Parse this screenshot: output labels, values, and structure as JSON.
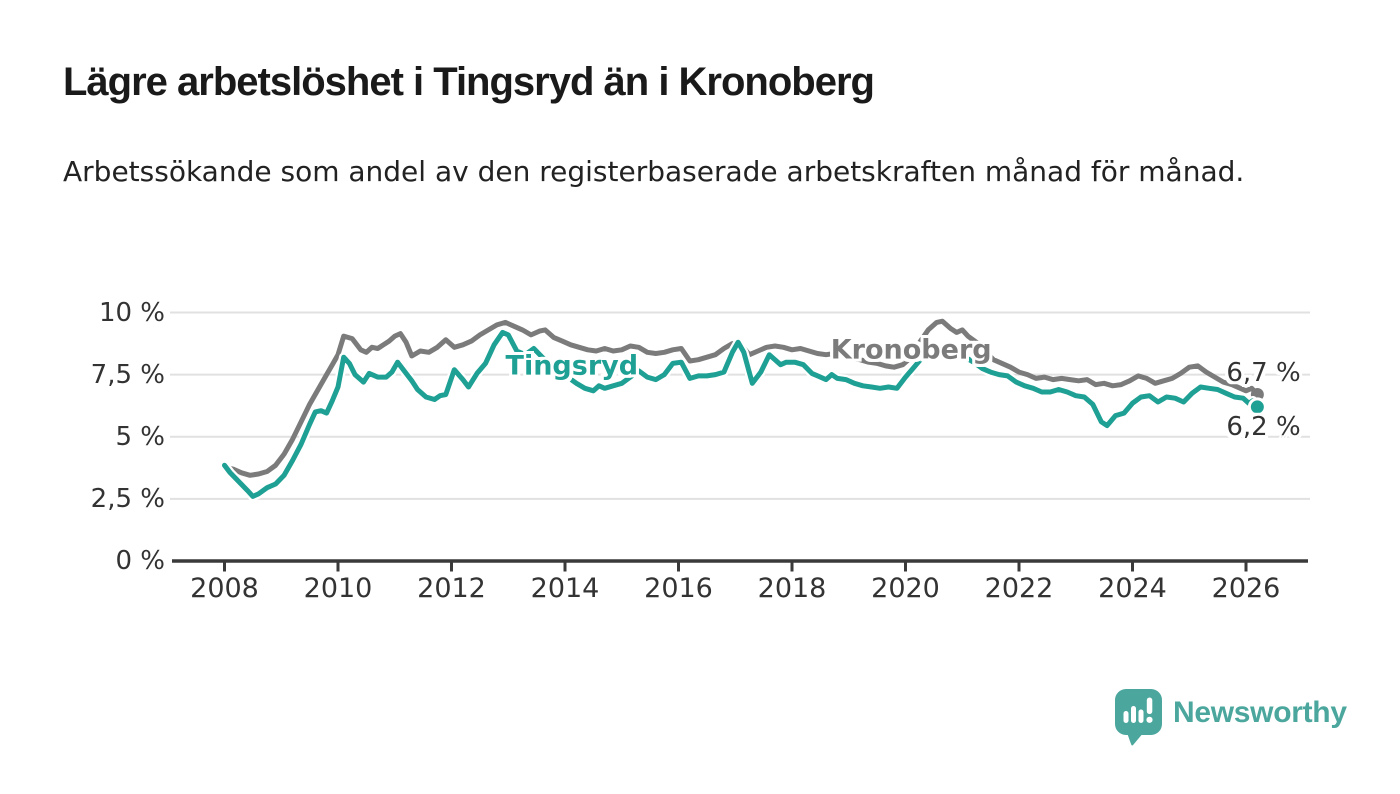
{
  "header": {
    "title": "Lägre arbetslöshet i Tingsryd än i Kronoberg",
    "subtitle": "Arbetssökande som andel av den registerbaserade arbetskraften månad för månad."
  },
  "branding": {
    "logo_text": "Newsworthy",
    "logo_icon": "speech-bubble-bar-chart-icon",
    "color": "#4BA79D"
  },
  "colors": {
    "accent_teal": "#1EA094",
    "series_gray": "#7B7B7B",
    "grid": "#E1E1E1",
    "axis": "#3A3A3A",
    "text": "#333333",
    "title": "#1A1A1A"
  },
  "chart_data": {
    "type": "line",
    "unit": "%",
    "grid": "horizontal",
    "legend": "inline labels on lines + end value labels",
    "x_axis": {
      "tick_labels": [
        "2008",
        "2010",
        "2012",
        "2014",
        "2016",
        "2018",
        "2020",
        "2022",
        "2024",
        "2026"
      ],
      "tick_values": [
        2008,
        2010,
        2012,
        2014,
        2016,
        2018,
        2020,
        2022,
        2024,
        2026
      ],
      "range": [
        2008,
        2026.2
      ]
    },
    "y_axis": {
      "tick_labels": [
        "0 %",
        "2,5 %",
        "5 %",
        "7,5 %",
        "10 %"
      ],
      "tick_values": [
        0,
        2.5,
        5,
        7.5,
        10
      ],
      "range": [
        0,
        10.2
      ]
    },
    "series": [
      {
        "name": "Kronoberg",
        "color": "#7B7B7B",
        "end_label": "6,7 %",
        "end_value": 6.7,
        "inline_label_anchor": {
          "x": 2020.1,
          "y": 8.5
        },
        "end_label_anchor_y": 7.55,
        "points": [
          [
            2008.0,
            3.8
          ],
          [
            2008.15,
            3.7
          ],
          [
            2008.3,
            3.55
          ],
          [
            2008.45,
            3.45
          ],
          [
            2008.6,
            3.5
          ],
          [
            2008.75,
            3.6
          ],
          [
            2008.9,
            3.85
          ],
          [
            2009.05,
            4.3
          ],
          [
            2009.2,
            4.9
          ],
          [
            2009.35,
            5.6
          ],
          [
            2009.5,
            6.3
          ],
          [
            2009.65,
            6.9
          ],
          [
            2009.8,
            7.5
          ],
          [
            2009.9,
            7.9
          ],
          [
            2010.0,
            8.3
          ],
          [
            2010.1,
            9.05
          ],
          [
            2010.25,
            8.95
          ],
          [
            2010.4,
            8.5
          ],
          [
            2010.5,
            8.4
          ],
          [
            2010.6,
            8.6
          ],
          [
            2010.7,
            8.55
          ],
          [
            2010.8,
            8.7
          ],
          [
            2010.9,
            8.85
          ],
          [
            2011.0,
            9.05
          ],
          [
            2011.1,
            9.15
          ],
          [
            2011.2,
            8.8
          ],
          [
            2011.3,
            8.25
          ],
          [
            2011.45,
            8.45
          ],
          [
            2011.6,
            8.4
          ],
          [
            2011.75,
            8.6
          ],
          [
            2011.9,
            8.9
          ],
          [
            2012.05,
            8.6
          ],
          [
            2012.2,
            8.7
          ],
          [
            2012.35,
            8.85
          ],
          [
            2012.5,
            9.1
          ],
          [
            2012.65,
            9.3
          ],
          [
            2012.8,
            9.5
          ],
          [
            2012.95,
            9.6
          ],
          [
            2013.1,
            9.45
          ],
          [
            2013.25,
            9.3
          ],
          [
            2013.4,
            9.1
          ],
          [
            2013.55,
            9.25
          ],
          [
            2013.65,
            9.3
          ],
          [
            2013.8,
            9.0
          ],
          [
            2013.95,
            8.85
          ],
          [
            2014.1,
            8.7
          ],
          [
            2014.25,
            8.6
          ],
          [
            2014.4,
            8.5
          ],
          [
            2014.55,
            8.45
          ],
          [
            2014.7,
            8.55
          ],
          [
            2014.85,
            8.45
          ],
          [
            2015.0,
            8.5
          ],
          [
            2015.15,
            8.65
          ],
          [
            2015.3,
            8.6
          ],
          [
            2015.45,
            8.4
          ],
          [
            2015.6,
            8.35
          ],
          [
            2015.75,
            8.4
          ],
          [
            2015.9,
            8.5
          ],
          [
            2016.05,
            8.55
          ],
          [
            2016.2,
            8.05
          ],
          [
            2016.35,
            8.1
          ],
          [
            2016.5,
            8.2
          ],
          [
            2016.65,
            8.3
          ],
          [
            2016.8,
            8.55
          ],
          [
            2016.95,
            8.75
          ],
          [
            2017.1,
            8.7
          ],
          [
            2017.25,
            8.3
          ],
          [
            2017.4,
            8.45
          ],
          [
            2017.55,
            8.6
          ],
          [
            2017.7,
            8.65
          ],
          [
            2017.85,
            8.6
          ],
          [
            2018.0,
            8.5
          ],
          [
            2018.15,
            8.55
          ],
          [
            2018.3,
            8.45
          ],
          [
            2018.45,
            8.35
          ],
          [
            2018.6,
            8.3
          ],
          [
            2018.75,
            8.35
          ],
          [
            2018.9,
            8.2
          ],
          [
            2019.05,
            8.15
          ],
          [
            2019.2,
            8.1
          ],
          [
            2019.35,
            8.0
          ],
          [
            2019.5,
            7.95
          ],
          [
            2019.65,
            7.85
          ],
          [
            2019.8,
            7.8
          ],
          [
            2019.95,
            7.9
          ],
          [
            2020.1,
            8.2
          ],
          [
            2020.25,
            8.8
          ],
          [
            2020.4,
            9.3
          ],
          [
            2020.55,
            9.6
          ],
          [
            2020.65,
            9.65
          ],
          [
            2020.8,
            9.35
          ],
          [
            2020.9,
            9.2
          ],
          [
            2021.0,
            9.3
          ],
          [
            2021.1,
            9.05
          ],
          [
            2021.25,
            8.8
          ],
          [
            2021.4,
            8.45
          ],
          [
            2021.55,
            8.1
          ],
          [
            2021.7,
            7.95
          ],
          [
            2021.85,
            7.8
          ],
          [
            2022.0,
            7.6
          ],
          [
            2022.15,
            7.5
          ],
          [
            2022.3,
            7.35
          ],
          [
            2022.45,
            7.4
          ],
          [
            2022.6,
            7.3
          ],
          [
            2022.75,
            7.35
          ],
          [
            2022.9,
            7.3
          ],
          [
            2023.05,
            7.25
          ],
          [
            2023.2,
            7.3
          ],
          [
            2023.35,
            7.1
          ],
          [
            2023.5,
            7.15
          ],
          [
            2023.65,
            7.05
          ],
          [
            2023.8,
            7.1
          ],
          [
            2023.95,
            7.25
          ],
          [
            2024.1,
            7.45
          ],
          [
            2024.25,
            7.35
          ],
          [
            2024.4,
            7.15
          ],
          [
            2024.55,
            7.25
          ],
          [
            2024.7,
            7.35
          ],
          [
            2024.85,
            7.55
          ],
          [
            2025.0,
            7.8
          ],
          [
            2025.15,
            7.85
          ],
          [
            2025.3,
            7.6
          ],
          [
            2025.45,
            7.4
          ],
          [
            2025.6,
            7.2
          ],
          [
            2025.75,
            7.1
          ],
          [
            2025.9,
            6.95
          ],
          [
            2026.0,
            6.85
          ],
          [
            2026.1,
            6.95
          ],
          [
            2026.2,
            6.7
          ]
        ]
      },
      {
        "name": "Tingsryd",
        "color": "#1EA094",
        "end_label": "6,2 %",
        "end_value": 6.2,
        "inline_label_anchor": {
          "x": 2014.12,
          "y": 7.85
        },
        "end_label_anchor_y": 5.4,
        "points": [
          [
            2008.0,
            3.85
          ],
          [
            2008.1,
            3.55
          ],
          [
            2008.25,
            3.2
          ],
          [
            2008.4,
            2.85
          ],
          [
            2008.5,
            2.6
          ],
          [
            2008.6,
            2.7
          ],
          [
            2008.75,
            2.95
          ],
          [
            2008.9,
            3.1
          ],
          [
            2009.05,
            3.45
          ],
          [
            2009.2,
            4.05
          ],
          [
            2009.35,
            4.7
          ],
          [
            2009.5,
            5.5
          ],
          [
            2009.6,
            6.0
          ],
          [
            2009.7,
            6.05
          ],
          [
            2009.8,
            5.95
          ],
          [
            2009.9,
            6.45
          ],
          [
            2010.0,
            7.0
          ],
          [
            2010.1,
            8.2
          ],
          [
            2010.2,
            7.95
          ],
          [
            2010.3,
            7.5
          ],
          [
            2010.45,
            7.2
          ],
          [
            2010.55,
            7.55
          ],
          [
            2010.7,
            7.4
          ],
          [
            2010.85,
            7.4
          ],
          [
            2010.95,
            7.6
          ],
          [
            2011.05,
            8.0
          ],
          [
            2011.2,
            7.55
          ],
          [
            2011.3,
            7.25
          ],
          [
            2011.4,
            6.9
          ],
          [
            2011.55,
            6.6
          ],
          [
            2011.7,
            6.5
          ],
          [
            2011.8,
            6.65
          ],
          [
            2011.9,
            6.7
          ],
          [
            2012.05,
            7.7
          ],
          [
            2012.2,
            7.3
          ],
          [
            2012.3,
            7.0
          ],
          [
            2012.45,
            7.55
          ],
          [
            2012.6,
            7.95
          ],
          [
            2012.75,
            8.7
          ],
          [
            2012.9,
            9.2
          ],
          [
            2013.0,
            9.1
          ],
          [
            2013.15,
            8.45
          ],
          [
            2013.3,
            8.3
          ],
          [
            2013.45,
            8.55
          ],
          [
            2013.6,
            8.2
          ],
          [
            2013.75,
            7.9
          ],
          [
            2013.9,
            7.65
          ],
          [
            2014.05,
            7.4
          ],
          [
            2014.2,
            7.15
          ],
          [
            2014.35,
            6.95
          ],
          [
            2014.5,
            6.85
          ],
          [
            2014.6,
            7.05
          ],
          [
            2014.7,
            6.95
          ],
          [
            2014.85,
            7.05
          ],
          [
            2015.0,
            7.15
          ],
          [
            2015.15,
            7.4
          ],
          [
            2015.3,
            7.65
          ],
          [
            2015.45,
            7.4
          ],
          [
            2015.6,
            7.3
          ],
          [
            2015.75,
            7.5
          ],
          [
            2015.9,
            7.95
          ],
          [
            2016.05,
            8.0
          ],
          [
            2016.2,
            7.35
          ],
          [
            2016.35,
            7.45
          ],
          [
            2016.5,
            7.45
          ],
          [
            2016.65,
            7.5
          ],
          [
            2016.8,
            7.6
          ],
          [
            2016.95,
            8.4
          ],
          [
            2017.05,
            8.8
          ],
          [
            2017.15,
            8.4
          ],
          [
            2017.3,
            7.15
          ],
          [
            2017.45,
            7.6
          ],
          [
            2017.6,
            8.3
          ],
          [
            2017.7,
            8.1
          ],
          [
            2017.8,
            7.9
          ],
          [
            2017.9,
            8.0
          ],
          [
            2018.05,
            8.0
          ],
          [
            2018.2,
            7.9
          ],
          [
            2018.35,
            7.55
          ],
          [
            2018.5,
            7.4
          ],
          [
            2018.6,
            7.3
          ],
          [
            2018.7,
            7.5
          ],
          [
            2018.8,
            7.35
          ],
          [
            2018.95,
            7.3
          ],
          [
            2019.1,
            7.15
          ],
          [
            2019.25,
            7.05
          ],
          [
            2019.4,
            7.0
          ],
          [
            2019.55,
            6.95
          ],
          [
            2019.7,
            7.0
          ],
          [
            2019.85,
            6.95
          ],
          [
            2020.0,
            7.4
          ],
          [
            2020.15,
            7.8
          ],
          [
            2020.3,
            8.2
          ],
          [
            2020.45,
            8.5
          ],
          [
            2020.6,
            8.55
          ],
          [
            2020.75,
            8.4
          ],
          [
            2020.9,
            8.3
          ],
          [
            2021.05,
            8.2
          ],
          [
            2021.2,
            8.0
          ],
          [
            2021.35,
            7.75
          ],
          [
            2021.5,
            7.6
          ],
          [
            2021.65,
            7.5
          ],
          [
            2021.8,
            7.45
          ],
          [
            2021.95,
            7.2
          ],
          [
            2022.1,
            7.05
          ],
          [
            2022.25,
            6.95
          ],
          [
            2022.4,
            6.8
          ],
          [
            2022.55,
            6.8
          ],
          [
            2022.7,
            6.9
          ],
          [
            2022.85,
            6.8
          ],
          [
            2023.0,
            6.65
          ],
          [
            2023.15,
            6.6
          ],
          [
            2023.3,
            6.3
          ],
          [
            2023.45,
            5.6
          ],
          [
            2023.55,
            5.45
          ],
          [
            2023.7,
            5.85
          ],
          [
            2023.85,
            5.95
          ],
          [
            2024.0,
            6.35
          ],
          [
            2024.15,
            6.6
          ],
          [
            2024.3,
            6.65
          ],
          [
            2024.45,
            6.4
          ],
          [
            2024.6,
            6.6
          ],
          [
            2024.75,
            6.55
          ],
          [
            2024.9,
            6.4
          ],
          [
            2025.05,
            6.75
          ],
          [
            2025.2,
            7.0
          ],
          [
            2025.35,
            6.95
          ],
          [
            2025.5,
            6.9
          ],
          [
            2025.65,
            6.75
          ],
          [
            2025.8,
            6.6
          ],
          [
            2025.95,
            6.55
          ],
          [
            2026.05,
            6.35
          ],
          [
            2026.12,
            6.45
          ],
          [
            2026.2,
            6.2
          ]
        ]
      }
    ]
  }
}
